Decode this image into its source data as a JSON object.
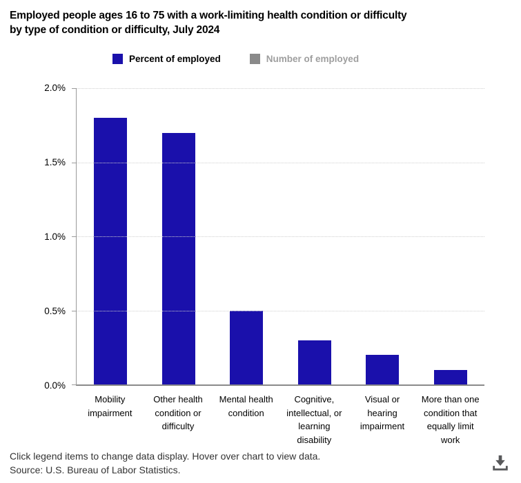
{
  "title": {
    "line1": "Employed people ages 16 to 75 with a work-limiting health condition or difficulty",
    "line2": "by type of condition or difficulty, July 2024"
  },
  "legend": {
    "items": [
      {
        "label": "Percent of employed",
        "swatch_color": "#1a10ab",
        "text_color": "#000000",
        "active": true
      },
      {
        "label": "Number of employed",
        "swatch_color": "#8a8a8a",
        "text_color": "#9e9e9e",
        "active": false
      }
    ]
  },
  "chart_data": {
    "type": "bar",
    "title": "Employed people ages 16 to 75 with a work-limiting health condition or difficulty by type of condition or difficulty, July 2024",
    "series_name": "Percent of employed",
    "categories": [
      "Mobility impairment",
      "Other health condition or difficulty",
      "Mental health condition",
      "Cognitive, intellectual, or learning disability",
      "Visual or hearing impairment",
      "More than one condition that equally limit work"
    ],
    "values": [
      1.8,
      1.7,
      0.5,
      0.3,
      0.2,
      0.1
    ],
    "unit": "%",
    "xlabel": "",
    "ylabel": "",
    "ylim": [
      0,
      2.0
    ],
    "ytick_labels": [
      "2.0%",
      "1.5%",
      "1.0%",
      "0.5%",
      "0.0%"
    ],
    "bar_color": "#1a10ab",
    "grid": "horizontal dotted",
    "legend_position": "top"
  },
  "footer": {
    "line1": "Click legend items to change data display. Hover over chart to view data.",
    "line2": "Source: U.S. Bureau of Labor Statistics."
  },
  "icons": {
    "download": "download-icon",
    "download_color": "#58595b"
  }
}
